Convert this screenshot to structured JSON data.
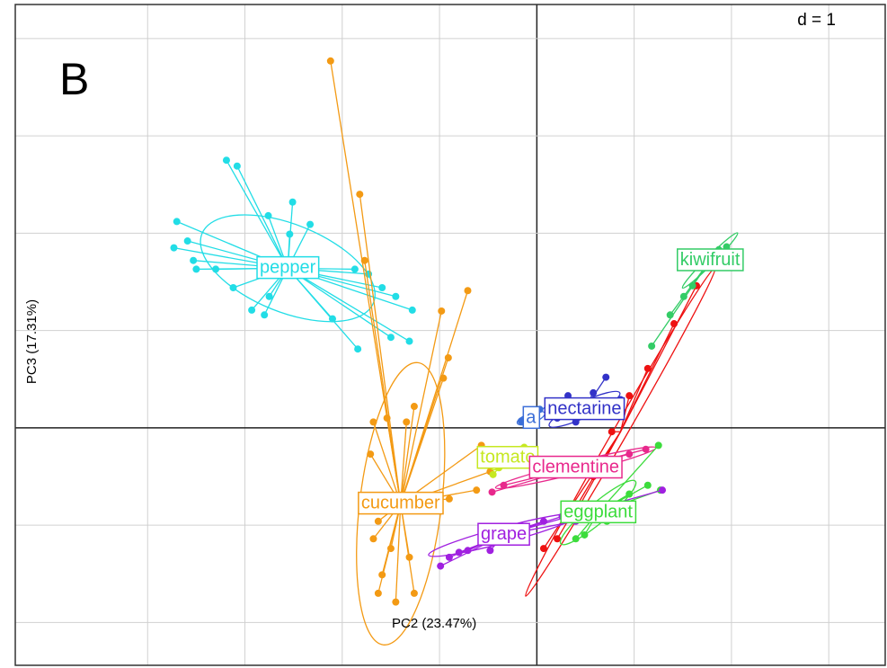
{
  "chart_data": {
    "type": "scatter",
    "title": "B",
    "scale_label": "d = 1",
    "x_label": "PC2 (23.47%)",
    "y_label": "PC3 (17.31%)",
    "xlim": [
      -5.36,
      3.58
    ],
    "ylim": [
      -2.44,
      4.35
    ],
    "xticks": [
      -4,
      -3,
      -2,
      -1,
      0,
      1,
      2,
      3
    ],
    "yticks": [
      -2,
      -1,
      0,
      1,
      2,
      3,
      4
    ],
    "grid": true,
    "series": [
      {
        "name": null,
        "color": "#ee1111",
        "center": [
          0.86,
          -0.04
        ],
        "ellipse": {
          "sx": 1.95,
          "sy": 0.07,
          "angle": 60
        },
        "x": [
          0.07,
          0.21,
          0.4,
          0.58,
          0.77,
          0.95,
          1.14,
          1.41,
          1.64
        ],
        "values": [
          -1.24,
          -1.14,
          -0.87,
          -0.5,
          -0.04,
          0.33,
          0.61,
          1.07,
          1.46
        ]
      },
      {
        "name": "pepper",
        "color": "#22dde6",
        "center": [
          -2.56,
          1.64
        ],
        "ellipse": {
          "sx": 0.95,
          "sy": 0.45,
          "angle": -22
        },
        "x": [
          -3.19,
          -3.08,
          -3.7,
          -3.73,
          -3.59,
          -3.53,
          -3.3,
          -3.12,
          -2.93,
          -2.75,
          -2.76,
          -2.51,
          -2.33,
          -1.87,
          -1.73,
          -1.59,
          -1.45,
          -1.28,
          -1.31,
          -1.5,
          -1.84,
          -2.1,
          -2.54,
          -2.8,
          -3.5
        ],
        "values": [
          2.75,
          2.69,
          2.12,
          1.85,
          1.92,
          1.72,
          1.63,
          1.44,
          1.21,
          1.35,
          2.18,
          2.32,
          2.09,
          1.63,
          1.58,
          1.44,
          1.35,
          1.21,
          0.89,
          0.93,
          0.81,
          1.12,
          1.99,
          1.16,
          1.63
        ]
      },
      {
        "name": "cucumber",
        "color": "#f39a14",
        "center": [
          -1.4,
          -0.78
        ],
        "ellipse": {
          "sx": 1.46,
          "sy": 0.42,
          "angle": 83
        },
        "x": [
          -2.12,
          -1.82,
          -1.77,
          -0.71,
          -0.98,
          -0.91,
          -0.96,
          -1.26,
          -1.54,
          -1.68,
          -1.71,
          -0.57,
          -0.48,
          -0.62,
          -0.9,
          -1.63,
          -1.68,
          -1.59,
          -1.63,
          -1.45,
          -1.26,
          -1.31,
          -1.5,
          -1.34
        ],
        "values": [
          3.77,
          2.4,
          1.72,
          1.41,
          1.2,
          0.72,
          0.51,
          0.22,
          0.1,
          0.06,
          -0.27,
          -0.18,
          -0.45,
          -0.64,
          -0.73,
          -0.96,
          -1.14,
          -1.51,
          -1.7,
          -1.79,
          -1.7,
          -1.33,
          -1.24,
          0.06
        ]
      },
      {
        "name": "tomato",
        "color": "#c6e820",
        "center": [
          -0.3,
          -0.31
        ],
        "ellipse": {
          "sx": 0.2,
          "sy": 0.05,
          "angle": 35
        },
        "x": [
          -0.45,
          -0.34,
          -0.2,
          -0.13,
          -0.25,
          -0.39
        ],
        "values": [
          -0.48,
          -0.36,
          -0.27,
          -0.2,
          -0.33,
          -0.41
        ]
      },
      {
        "name": "a",
        "color": "#3b6ed8",
        "center": [
          -0.06,
          0.1
        ],
        "ellipse": {
          "sx": 0.15,
          "sy": 0.05,
          "angle": 20
        },
        "x": [
          0.03,
          0.12,
          -0.16
        ],
        "values": [
          0.19,
          0.24,
          0.07
        ]
      },
      {
        "name": "nectarine",
        "color": "#3232c8",
        "center": [
          0.49,
          0.19
        ],
        "ellipse": {
          "sx": 0.4,
          "sy": 0.08,
          "angle": 25
        },
        "x": [
          0.32,
          0.58,
          0.71,
          0.86,
          0.4,
          0.21
        ],
        "values": [
          0.33,
          0.36,
          0.52,
          0.29,
          0.06,
          0.1
        ]
      },
      {
        "name": "clementine",
        "color": "#e8288c",
        "center": [
          0.4,
          -0.41
        ],
        "ellipse": {
          "sx": 0.85,
          "sy": 0.06,
          "angle": 14
        },
        "x": [
          -0.46,
          -0.34,
          0.95,
          1.12,
          0.77
        ],
        "values": [
          -0.66,
          -0.59,
          -0.27,
          -0.22,
          -0.33
        ]
      },
      {
        "name": "eggplant",
        "color": "#3cdc3c",
        "center": [
          0.63,
          -0.87
        ],
        "ellipse": {
          "sx": 0.5,
          "sy": 0.1,
          "angle": 40
        },
        "x": [
          1.27,
          1.14,
          0.95,
          1.25,
          0.86,
          0.49,
          0.4,
          0.72
        ],
        "values": [
          -0.64,
          -0.59,
          -0.68,
          -0.18,
          -0.78,
          -1.1,
          -1.14,
          -0.96
        ]
      },
      {
        "name": "grape",
        "color": "#a020e0",
        "center": [
          -0.34,
          -1.1
        ],
        "ellipse": {
          "sx": 0.8,
          "sy": 0.08,
          "angle": 15
        },
        "x": [
          -0.99,
          -0.9,
          -0.8,
          -0.71,
          -0.48,
          0.07,
          0.26,
          1.29,
          0.4
        ],
        "values": [
          -1.42,
          -1.33,
          -1.28,
          -1.26,
          -1.26,
          -0.96,
          -0.91,
          -0.64,
          -0.96
        ]
      },
      {
        "name": "kiwifruit",
        "color": "#33cc66",
        "center": [
          1.78,
          1.72
        ],
        "ellipse": {
          "sx": 0.4,
          "sy": 0.04,
          "angle": 45
        },
        "x": [
          1.87,
          1.95,
          1.6,
          1.37,
          1.51,
          1.18
        ],
        "values": [
          1.83,
          1.86,
          1.46,
          1.16,
          1.35,
          0.84
        ]
      }
    ]
  }
}
